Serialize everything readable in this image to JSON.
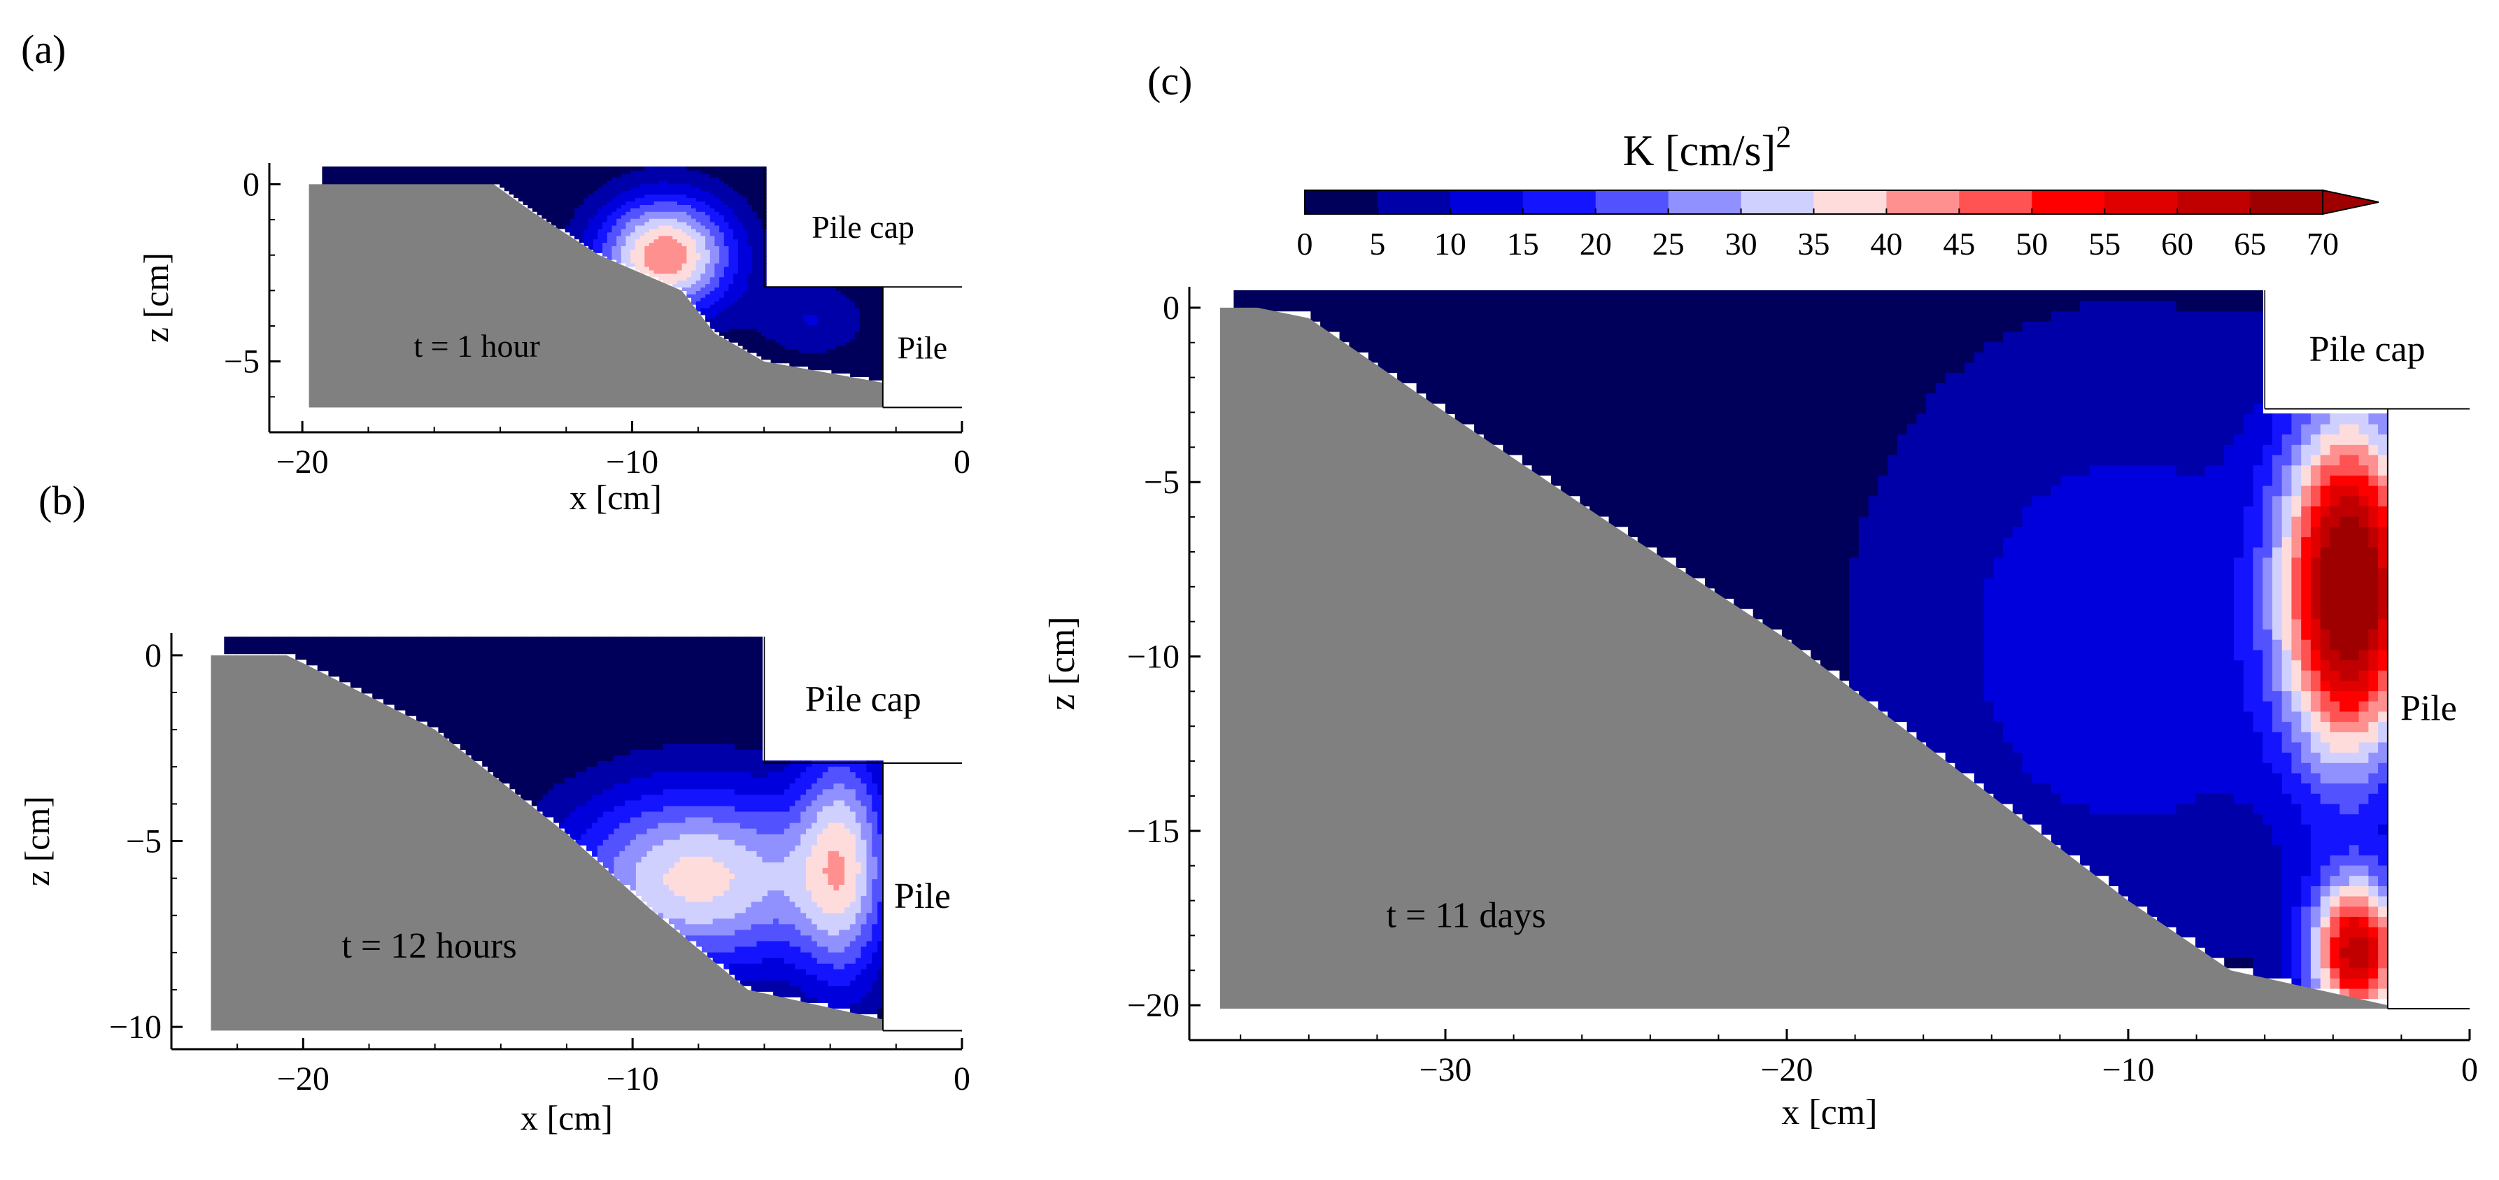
{
  "chart_data": [
    {
      "panel": "(a)",
      "type": "heatmap",
      "time_label": "t = 1 hour",
      "xlabel": "x [cm]",
      "ylabel": "z [cm]",
      "xlim": [
        -21,
        0
      ],
      "ylim": [
        -7,
        0.6
      ],
      "xticks": [
        -20,
        -10,
        0
      ],
      "yticks": [
        0,
        -5
      ],
      "xtick_labels": [
        "−20",
        "−10",
        "0"
      ],
      "ytick_labels": [
        "0",
        "−5"
      ],
      "annotations": [
        "Pile cap",
        "Pile"
      ],
      "structure": {
        "cap_bottom_z": -2.9,
        "pile_face_x": -2.4,
        "pile_bottom_z": -6.3,
        "cap_face_x": -6.0
      },
      "slope_profile": [
        [
          -19.8,
          -6.3
        ],
        [
          -19.8,
          0
        ],
        [
          -14.2,
          0
        ],
        [
          -13.0,
          -0.8
        ],
        [
          -11.0,
          -2.0
        ],
        [
          -8.5,
          -3.0
        ],
        [
          -7.5,
          -4.2
        ],
        [
          -6.0,
          -5.0
        ],
        [
          -2.4,
          -5.6
        ],
        [
          -2.4,
          -6.3
        ]
      ],
      "hotspots": [
        {
          "x": -9.0,
          "z": -2.0,
          "peak_k": 44,
          "sx": 1.5,
          "sz": 1.2
        },
        {
          "x": -4.5,
          "z": -3.8,
          "peak_k": 10,
          "sx": 1.2,
          "sz": 0.8
        }
      ]
    },
    {
      "panel": "(b)",
      "type": "heatmap",
      "time_label": "t = 12 hours",
      "xlabel": "x [cm]",
      "ylabel": "z [cm]",
      "xlim": [
        -24,
        0
      ],
      "ylim": [
        -10.6,
        0.6
      ],
      "xticks": [
        -20,
        -10,
        0
      ],
      "yticks": [
        0,
        -5,
        -10
      ],
      "xtick_labels": [
        "−20",
        "−10",
        "0"
      ],
      "ytick_labels": [
        "0",
        "−5",
        "−10"
      ],
      "annotations": [
        "Pile cap",
        "Pile"
      ],
      "structure": {
        "cap_bottom_z": -2.9,
        "pile_face_x": -2.4,
        "pile_bottom_z": -10.1,
        "cap_face_x": -6.0
      },
      "slope_profile": [
        [
          -22.8,
          -10.1
        ],
        [
          -22.8,
          0
        ],
        [
          -20.5,
          0
        ],
        [
          -19.8,
          -0.3
        ],
        [
          -16.0,
          -2.0
        ],
        [
          -12.0,
          -4.8
        ],
        [
          -9.5,
          -6.8
        ],
        [
          -6.5,
          -9.0
        ],
        [
          -2.4,
          -9.8
        ],
        [
          -2.4,
          -10.1
        ]
      ],
      "hotspots": [
        {
          "x": -8.0,
          "z": -6.0,
          "peak_k": 37,
          "sx": 3.0,
          "sz": 1.8
        },
        {
          "x": -3.6,
          "z": -5.5,
          "peak_k": 28,
          "sx": 1.0,
          "sz": 2.5
        }
      ]
    },
    {
      "panel": "(c)",
      "type": "heatmap",
      "time_label": "t = 11 days",
      "xlabel": "x [cm]",
      "ylabel": "z [cm]",
      "xlim": [
        -37.5,
        0
      ],
      "ylim": [
        -21,
        0.6
      ],
      "xticks": [
        -30,
        -20,
        -10,
        0
      ],
      "yticks": [
        0,
        -5,
        -10,
        -15,
        -20
      ],
      "xtick_labels": [
        "−30",
        "−20",
        "−10",
        "0"
      ],
      "ytick_labels": [
        "0",
        "−5",
        "−10",
        "−15",
        "−20"
      ],
      "annotations": [
        "Pile cap",
        "Pile"
      ],
      "structure": {
        "cap_bottom_z": -2.9,
        "pile_face_x": -2.4,
        "pile_bottom_z": -20.1,
        "cap_face_x": -6.0
      },
      "slope_profile": [
        [
          -36.6,
          -20.1
        ],
        [
          -36.6,
          0
        ],
        [
          -35.5,
          0
        ],
        [
          -34.0,
          -0.3
        ],
        [
          -30.0,
          -3.0
        ],
        [
          -25.0,
          -6.3
        ],
        [
          -20.0,
          -9.5
        ],
        [
          -14.0,
          -14.0
        ],
        [
          -10.0,
          -17.0
        ],
        [
          -7.0,
          -19.0
        ],
        [
          -2.4,
          -20.0
        ],
        [
          -2.4,
          -20.1
        ]
      ],
      "hotspots": [
        {
          "x": -10.0,
          "z": -9.5,
          "peak_k": 13,
          "sx": 6.0,
          "sz": 7.0
        },
        {
          "x": -3.5,
          "z": -8.0,
          "peak_k": 70,
          "sx": 1.4,
          "sz": 3.5
        },
        {
          "x": -3.3,
          "z": -18.5,
          "peak_k": 60,
          "sx": 1.0,
          "sz": 1.5
        }
      ]
    }
  ],
  "colorbar": {
    "title": "K [cm/s]",
    "title_exponent": "2",
    "levels": [
      0,
      5,
      10,
      15,
      20,
      25,
      30,
      35,
      40,
      45,
      50,
      55,
      60,
      65,
      70
    ],
    "tick_labels": [
      "0",
      "5",
      "10",
      "15",
      "20",
      "25",
      "30",
      "35",
      "40",
      "45",
      "50",
      "55",
      "60",
      "65",
      "70"
    ],
    "colors": [
      "#00005a",
      "#0000a8",
      "#0000dc",
      "#1414ff",
      "#5252ff",
      "#9090ff",
      "#d0d0ff",
      "#ffdcdc",
      "#ff9090",
      "#ff5252",
      "#ff0000",
      "#e00000",
      "#c00000",
      "#9e0000"
    ],
    "extend": "max"
  },
  "colors": {
    "soil": "#808080",
    "axes": "#000000",
    "background": "#ffffff"
  }
}
